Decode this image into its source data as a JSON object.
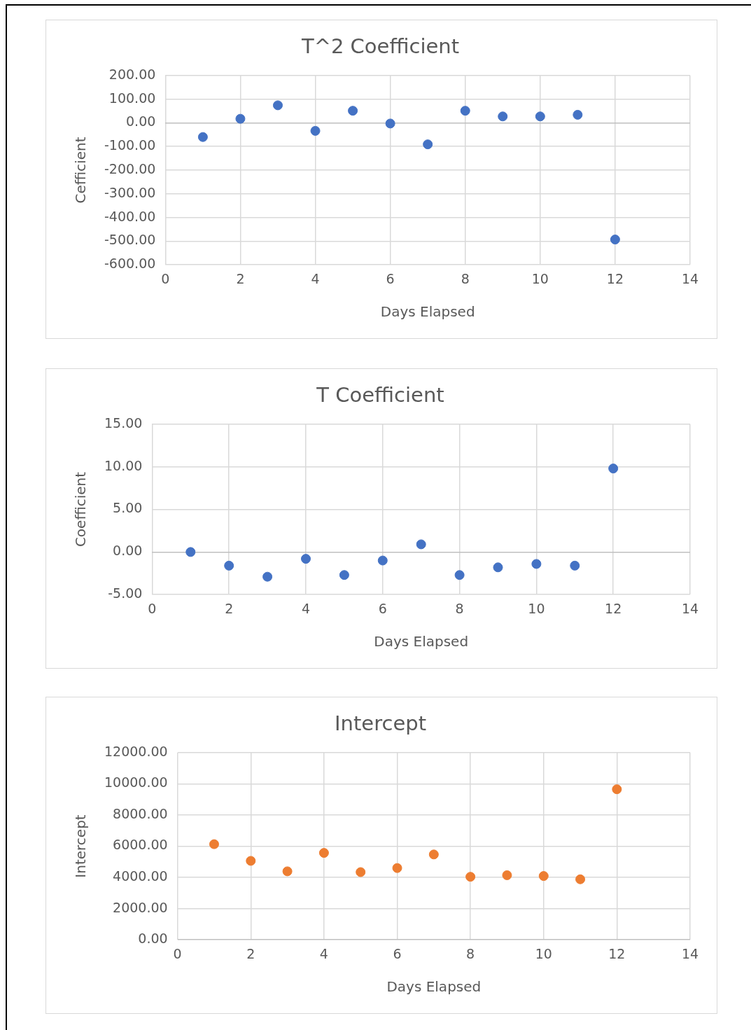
{
  "chart_data": [
    {
      "type": "scatter",
      "title": "T^2 Coefficient",
      "xlabel": "Days Elapsed",
      "ylabel": "Cefficient",
      "marker": "circle",
      "grid": true,
      "xlim": [
        0,
        14
      ],
      "xticks": [
        0,
        2,
        4,
        6,
        8,
        10,
        12,
        14
      ],
      "ylim": [
        -600,
        200
      ],
      "yticks": [
        {
          "value": -600,
          "label": "-600.00"
        },
        {
          "value": -500,
          "label": "-500.00"
        },
        {
          "value": -400,
          "label": "-400.00"
        },
        {
          "value": -300,
          "label": "-300.00"
        },
        {
          "value": -200,
          "label": "-200.00"
        },
        {
          "value": -100,
          "label": "-100.00"
        },
        {
          "value": 0,
          "label": "0.00"
        },
        {
          "value": 100,
          "label": "100.00"
        },
        {
          "value": 200,
          "label": "200.00"
        }
      ],
      "series": [
        {
          "color": "#4472c4",
          "x": [
            1,
            2,
            3,
            4,
            5,
            6,
            7,
            8,
            9,
            10,
            11,
            12
          ],
          "values": [
            -60,
            17,
            74,
            -34,
            51,
            -3,
            -91,
            51,
            27,
            27,
            34,
            -493
          ]
        }
      ]
    },
    {
      "type": "scatter",
      "title": "T Coefficient",
      "xlabel": "Days Elapsed",
      "ylabel": "Coefficient",
      "marker": "circle",
      "grid": true,
      "xlim": [
        0,
        14
      ],
      "xticks": [
        0,
        2,
        4,
        6,
        8,
        10,
        12,
        14
      ],
      "ylim": [
        -5,
        15
      ],
      "yticks": [
        {
          "value": -5,
          "label": "-5.00"
        },
        {
          "value": 0,
          "label": "0.00"
        },
        {
          "value": 5,
          "label": "5.00"
        },
        {
          "value": 10,
          "label": "10.00"
        },
        {
          "value": 15,
          "label": "15.00"
        }
      ],
      "series": [
        {
          "color": "#4472c4",
          "x": [
            1,
            2,
            3,
            4,
            5,
            6,
            7,
            8,
            9,
            10,
            11,
            12
          ],
          "values": [
            0,
            -1.6,
            -2.9,
            -0.8,
            -2.7,
            -1.0,
            0.9,
            -2.7,
            -1.8,
            -1.4,
            -1.6,
            9.8
          ]
        }
      ]
    },
    {
      "type": "scatter",
      "title": "Intercept",
      "xlabel": "Days Elapsed",
      "ylabel": "Intercept",
      "marker": "circle",
      "grid": true,
      "xlim": [
        0,
        14
      ],
      "xticks": [
        0,
        2,
        4,
        6,
        8,
        10,
        12,
        14
      ],
      "ylim": [
        0,
        12000
      ],
      "yticks": [
        {
          "value": 0,
          "label": "0.00"
        },
        {
          "value": 2000,
          "label": "2000.00"
        },
        {
          "value": 4000,
          "label": "4000.00"
        },
        {
          "value": 6000,
          "label": "6000.00"
        },
        {
          "value": 8000,
          "label": "8000.00"
        },
        {
          "value": 10000,
          "label": "10000.00"
        },
        {
          "value": 12000,
          "label": "12000.00"
        }
      ],
      "series": [
        {
          "color": "#ed7d31",
          "x": [
            1,
            2,
            3,
            4,
            5,
            6,
            7,
            8,
            9,
            10,
            11,
            12
          ],
          "values": [
            6130,
            5060,
            4390,
            5570,
            4340,
            4600,
            5470,
            4040,
            4140,
            4090,
            3880,
            9650
          ]
        }
      ]
    }
  ]
}
